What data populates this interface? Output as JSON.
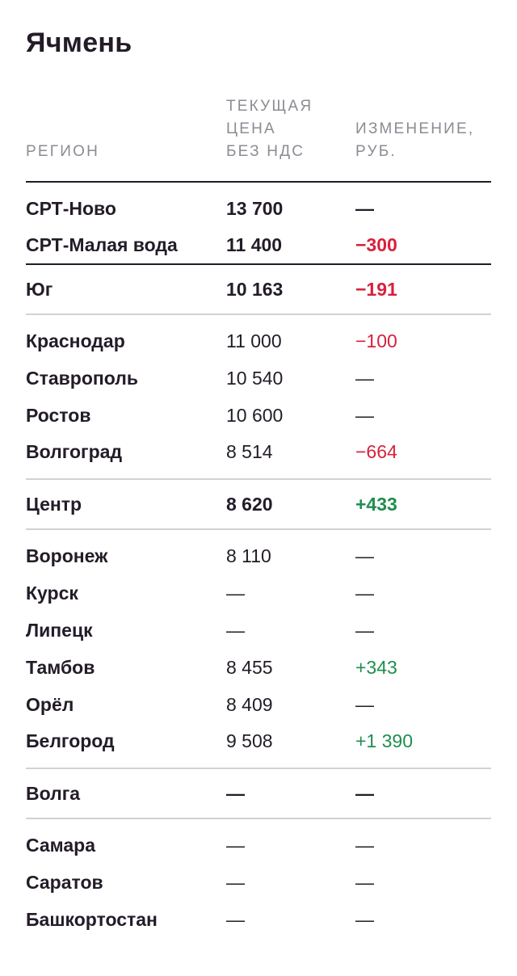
{
  "title": "Ячмень",
  "columns": {
    "region": "РЕГИОН",
    "price": "ТЕКУЩАЯ\nЦЕНА\nБЕЗ НДС",
    "change": "ИЗМЕНЕНИЕ,\nРУБ."
  },
  "colors": {
    "negative": "#d8203c",
    "positive": "#1f8e4f",
    "text": "#231c28",
    "header": "#8f8a93"
  },
  "rows": [
    {
      "region": "СРТ-Ново",
      "price": "13 700",
      "change": "—",
      "trend": "neutral",
      "bold": true
    },
    {
      "region": "СРТ-Малая вода",
      "price": "11 400",
      "change": "−300",
      "trend": "neg",
      "bold": true
    },
    {
      "region": "Юг",
      "price": "10 163",
      "change": "−191",
      "trend": "neg",
      "bold": true
    },
    {
      "region": "Краснодар",
      "price": "11 000",
      "change": "−100",
      "trend": "neg",
      "bold": false
    },
    {
      "region": "Ставрополь",
      "price": "10 540",
      "change": "—",
      "trend": "neutral",
      "bold": false
    },
    {
      "region": "Ростов",
      "price": "10 600",
      "change": "—",
      "trend": "neutral",
      "bold": false
    },
    {
      "region": "Волгоград",
      "price": "8 514",
      "change": "−664",
      "trend": "neg",
      "bold": false
    },
    {
      "region": "Центр",
      "price": "8 620",
      "change": "+433",
      "trend": "pos",
      "bold": true
    },
    {
      "region": "Воронеж",
      "price": "8 110",
      "change": "—",
      "trend": "neutral",
      "bold": false
    },
    {
      "region": "Курск",
      "price": "—",
      "change": "—",
      "trend": "neutral",
      "bold": false
    },
    {
      "region": "Липецк",
      "price": "—",
      "change": "—",
      "trend": "neutral",
      "bold": false
    },
    {
      "region": "Тамбов",
      "price": "8 455",
      "change": "+343",
      "trend": "pos",
      "bold": false
    },
    {
      "region": "Орёл",
      "price": "8 409",
      "change": "—",
      "trend": "neutral",
      "bold": false
    },
    {
      "region": "Белгород",
      "price": "9 508",
      "change": "+1 390",
      "trend": "pos",
      "bold": false
    },
    {
      "region": "Волга",
      "price": "—",
      "change": "—",
      "trend": "neutral",
      "bold": true
    },
    {
      "region": "Самара",
      "price": "—",
      "change": "—",
      "trend": "neutral",
      "bold": false
    },
    {
      "region": "Саратов",
      "price": "—",
      "change": "—",
      "trend": "neutral",
      "bold": false
    },
    {
      "region": "Башкортостан",
      "price": "—",
      "change": "—",
      "trend": "neutral",
      "bold": false
    }
  ]
}
